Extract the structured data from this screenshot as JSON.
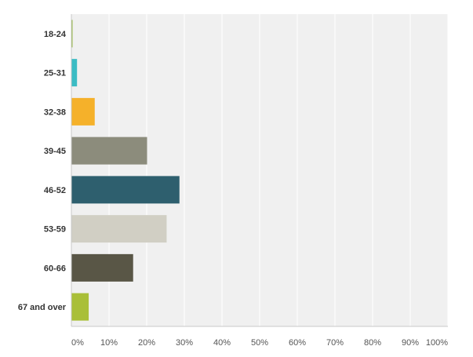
{
  "chart_data": {
    "type": "bar",
    "orientation": "horizontal",
    "categories": [
      "18-24",
      "25-31",
      "32-38",
      "39-45",
      "46-52",
      "53-59",
      "60-66",
      "67 and over"
    ],
    "values": [
      0.3,
      1.5,
      6.2,
      20.1,
      28.7,
      25.3,
      16.4,
      4.6
    ],
    "colors": [
      "#8fb33a",
      "#3bbcc4",
      "#f5b12a",
      "#8c8c7c",
      "#2e5f6e",
      "#d1cfc4",
      "#595646",
      "#a9bf38"
    ],
    "xlim": [
      0,
      100
    ],
    "x_ticks": [
      0,
      10,
      20,
      30,
      40,
      50,
      60,
      70,
      80,
      90,
      100
    ],
    "x_tick_labels": [
      "0%",
      "10%",
      "20%",
      "30%",
      "40%",
      "50%",
      "60%",
      "70%",
      "80%",
      "90%",
      "100%"
    ],
    "grid": true,
    "plot_background": "#f0f0f0",
    "grid_color": "#ffffff",
    "title": "",
    "xlabel": "",
    "ylabel": ""
  }
}
